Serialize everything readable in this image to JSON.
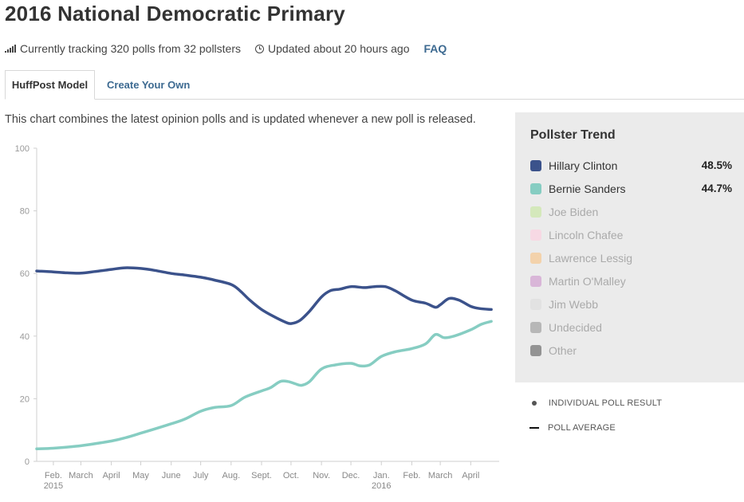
{
  "page": {
    "title": "2016 National Democratic Primary",
    "tracking_text": "Currently tracking 320 polls from 32 pollsters",
    "updated_text": "Updated about 20 hours ago",
    "faq_label": "FAQ",
    "tabs": [
      {
        "label": "HuffPost Model",
        "active": true
      },
      {
        "label": "Create Your Own",
        "active": false
      }
    ],
    "description": "This chart combines the latest opinion polls and is updated whenever a new poll is released.",
    "icons": {
      "tracking": "signal-bars-icon",
      "updated": "clock-icon"
    }
  },
  "legend": {
    "title": "Pollster Trend",
    "items": [
      {
        "name": "Hillary Clinton",
        "value": "48.5%",
        "color": "#3b528b",
        "active": true
      },
      {
        "name": "Bernie Sanders",
        "value": "44.7%",
        "color": "#86cdc2",
        "active": true
      },
      {
        "name": "Joe Biden",
        "value": "",
        "color": "#d4e8bb",
        "active": false
      },
      {
        "name": "Lincoln Chafee",
        "value": "",
        "color": "#f7d9e4",
        "active": false
      },
      {
        "name": "Lawrence Lessig",
        "value": "",
        "color": "#f3d2ab",
        "active": false
      },
      {
        "name": "Martin O'Malley",
        "value": "",
        "color": "#d9b6d8",
        "active": false
      },
      {
        "name": "Jim Webb",
        "value": "",
        "color": "#e2e2e2",
        "active": false
      },
      {
        "name": "Undecided",
        "value": "",
        "color": "#b7b7b7",
        "active": false
      },
      {
        "name": "Other",
        "value": "",
        "color": "#939393",
        "active": false
      }
    ]
  },
  "key": {
    "individual": "INDIVIDUAL POLL RESULT",
    "average": "POLL AVERAGE"
  },
  "chart_data": {
    "type": "line",
    "title": "",
    "xlabel": "",
    "ylabel": "",
    "ylim": [
      0,
      100
    ],
    "yticks": [
      0,
      20,
      40,
      60,
      80,
      100
    ],
    "xlim": [
      "2015-01-15",
      "2016-04-30"
    ],
    "xticks": [
      {
        "date": "2015-02-01",
        "label": "Feb.",
        "sublabel": "2015"
      },
      {
        "date": "2015-03-01",
        "label": "March",
        "sublabel": ""
      },
      {
        "date": "2015-04-01",
        "label": "April",
        "sublabel": ""
      },
      {
        "date": "2015-05-01",
        "label": "May",
        "sublabel": ""
      },
      {
        "date": "2015-06-01",
        "label": "June",
        "sublabel": ""
      },
      {
        "date": "2015-07-01",
        "label": "July",
        "sublabel": ""
      },
      {
        "date": "2015-08-01",
        "label": "Aug.",
        "sublabel": ""
      },
      {
        "date": "2015-09-01",
        "label": "Sept.",
        "sublabel": ""
      },
      {
        "date": "2015-10-01",
        "label": "Oct.",
        "sublabel": ""
      },
      {
        "date": "2015-11-01",
        "label": "Nov.",
        "sublabel": ""
      },
      {
        "date": "2015-12-01",
        "label": "Dec.",
        "sublabel": ""
      },
      {
        "date": "2016-01-01",
        "label": "Jan.",
        "sublabel": "2016"
      },
      {
        "date": "2016-02-01",
        "label": "Feb.",
        "sublabel": ""
      },
      {
        "date": "2016-03-01",
        "label": "March",
        "sublabel": ""
      },
      {
        "date": "2016-04-01",
        "label": "April",
        "sublabel": ""
      }
    ],
    "grid": false,
    "series": [
      {
        "name": "Hillary Clinton",
        "color": "#3b528b",
        "points": [
          [
            "2015-01-15",
            60.8
          ],
          [
            "2015-02-01",
            60.5
          ],
          [
            "2015-02-15",
            60.2
          ],
          [
            "2015-03-01",
            60.1
          ],
          [
            "2015-03-15",
            60.6
          ],
          [
            "2015-04-01",
            61.3
          ],
          [
            "2015-04-15",
            61.8
          ],
          [
            "2015-05-01",
            61.6
          ],
          [
            "2015-05-15",
            61.0
          ],
          [
            "2015-06-01",
            60.0
          ],
          [
            "2015-06-15",
            59.5
          ],
          [
            "2015-07-01",
            58.8
          ],
          [
            "2015-07-15",
            57.9
          ],
          [
            "2015-08-01",
            56.5
          ],
          [
            "2015-08-10",
            54.5
          ],
          [
            "2015-08-20",
            51.5
          ],
          [
            "2015-09-01",
            48.5
          ],
          [
            "2015-09-15",
            46.0
          ],
          [
            "2015-09-25",
            44.5
          ],
          [
            "2015-10-01",
            44.0
          ],
          [
            "2015-10-10",
            45.0
          ],
          [
            "2015-10-20",
            48.0
          ],
          [
            "2015-11-01",
            52.5
          ],
          [
            "2015-11-10",
            54.5
          ],
          [
            "2015-11-20",
            55.0
          ],
          [
            "2015-12-01",
            55.8
          ],
          [
            "2015-12-15",
            55.5
          ],
          [
            "2015-12-25",
            55.8
          ],
          [
            "2016-01-05",
            55.8
          ],
          [
            "2016-01-15",
            54.5
          ],
          [
            "2016-02-01",
            51.5
          ],
          [
            "2016-02-15",
            50.5
          ],
          [
            "2016-02-25",
            49.2
          ],
          [
            "2016-03-01",
            50.0
          ],
          [
            "2016-03-10",
            52.0
          ],
          [
            "2016-03-20",
            51.5
          ],
          [
            "2016-04-01",
            49.5
          ],
          [
            "2016-04-10",
            48.8
          ],
          [
            "2016-04-22",
            48.5
          ]
        ]
      },
      {
        "name": "Bernie Sanders",
        "color": "#86cdc2",
        "points": [
          [
            "2015-01-15",
            4.0
          ],
          [
            "2015-02-01",
            4.2
          ],
          [
            "2015-03-01",
            5.0
          ],
          [
            "2015-04-01",
            6.5
          ],
          [
            "2015-04-15",
            7.5
          ],
          [
            "2015-05-01",
            9.0
          ],
          [
            "2015-06-01",
            12.0
          ],
          [
            "2015-06-15",
            13.5
          ],
          [
            "2015-07-01",
            16.0
          ],
          [
            "2015-07-15",
            17.2
          ],
          [
            "2015-08-01",
            17.8
          ],
          [
            "2015-08-15",
            20.5
          ],
          [
            "2015-09-01",
            22.5
          ],
          [
            "2015-09-10",
            23.5
          ],
          [
            "2015-09-20",
            25.5
          ],
          [
            "2015-09-28",
            25.5
          ],
          [
            "2015-10-05",
            24.8
          ],
          [
            "2015-10-12",
            24.3
          ],
          [
            "2015-10-20",
            25.5
          ],
          [
            "2015-11-01",
            29.5
          ],
          [
            "2015-11-15",
            30.8
          ],
          [
            "2015-12-01",
            31.3
          ],
          [
            "2015-12-10",
            30.5
          ],
          [
            "2015-12-20",
            30.8
          ],
          [
            "2016-01-01",
            33.5
          ],
          [
            "2016-01-15",
            35.0
          ],
          [
            "2016-02-01",
            36.0
          ],
          [
            "2016-02-15",
            37.5
          ],
          [
            "2016-02-25",
            40.5
          ],
          [
            "2016-03-05",
            39.5
          ],
          [
            "2016-03-15",
            40.0
          ],
          [
            "2016-04-01",
            42.0
          ],
          [
            "2016-04-12",
            43.8
          ],
          [
            "2016-04-22",
            44.7
          ]
        ]
      }
    ]
  }
}
